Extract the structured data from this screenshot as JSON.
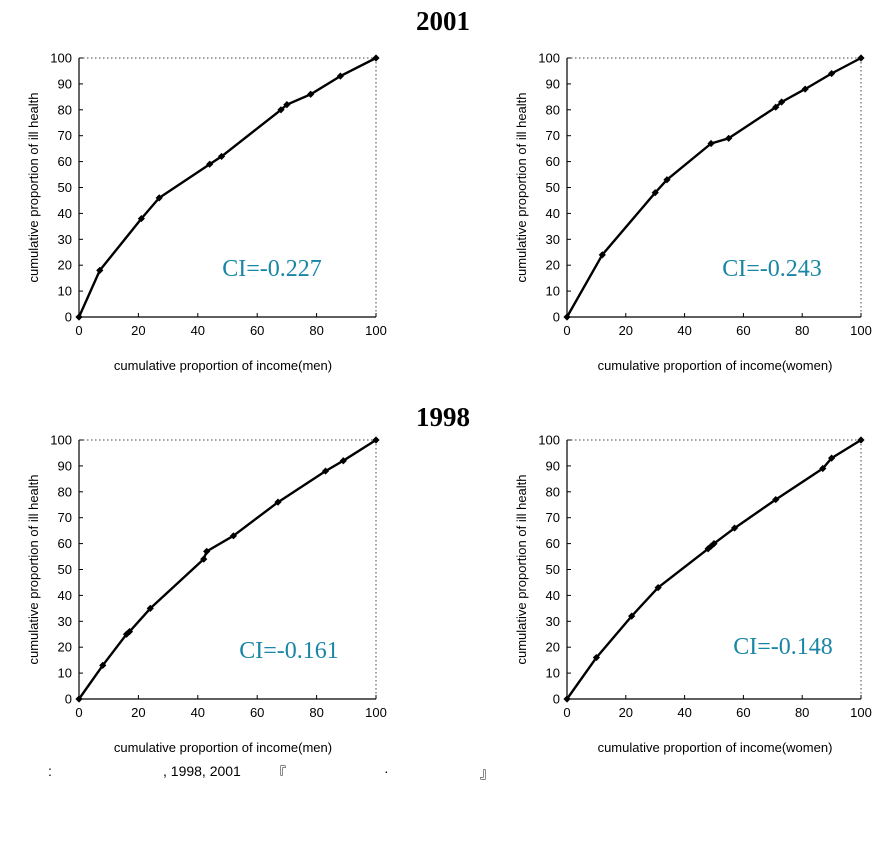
{
  "page": {
    "year_top": "2001",
    "year_bottom": "1998",
    "source": {
      "colon": ":",
      "years": ", 1998, 2001",
      "open_quote": "『",
      "dot": "·",
      "close_quote": "』"
    }
  },
  "chart_data": [
    {
      "type": "line",
      "panel": "2001-men",
      "xlabel": "cumulative proportion of income(men)",
      "ylabel": "cumulative proportion of ill health",
      "xlim": [
        0,
        100
      ],
      "ylim": [
        0,
        100
      ],
      "xticks": [
        0,
        20,
        40,
        60,
        80,
        100
      ],
      "yticks": [
        0,
        10,
        20,
        30,
        40,
        50,
        60,
        70,
        80,
        90,
        100
      ],
      "grid": "dotted border box",
      "annotation": "CI=-0.227",
      "x": [
        0,
        7,
        21,
        27,
        44,
        48,
        68,
        70,
        78,
        88,
        100
      ],
      "y": [
        0,
        18,
        38,
        46,
        59,
        62,
        80,
        82,
        86,
        93,
        100
      ]
    },
    {
      "type": "line",
      "panel": "2001-women",
      "xlabel": "cumulative proportion of income(women)",
      "ylabel": "cumulative proportion of ill health",
      "xlim": [
        0,
        100
      ],
      "ylim": [
        0,
        100
      ],
      "xticks": [
        0,
        20,
        40,
        60,
        80,
        100
      ],
      "yticks": [
        0,
        10,
        20,
        30,
        40,
        50,
        60,
        70,
        80,
        90,
        100
      ],
      "grid": "dotted border box",
      "annotation": "CI=-0.243",
      "x": [
        0,
        12,
        30,
        34,
        49,
        55,
        71,
        73,
        81,
        90,
        100
      ],
      "y": [
        0,
        24,
        48,
        53,
        67,
        69,
        81,
        83,
        88,
        94,
        100
      ]
    },
    {
      "type": "line",
      "panel": "1998-men",
      "xlabel": "cumulative proportion of income(men)",
      "ylabel": "cumulative proportion of ill health",
      "xlim": [
        0,
        100
      ],
      "ylim": [
        0,
        100
      ],
      "xticks": [
        0,
        20,
        40,
        60,
        80,
        100
      ],
      "yticks": [
        0,
        10,
        20,
        30,
        40,
        50,
        60,
        70,
        80,
        90,
        100
      ],
      "grid": "dotted border box",
      "annotation": "CI=-0.161",
      "x": [
        0,
        8,
        16,
        17,
        24,
        42,
        43,
        52,
        67,
        83,
        89,
        100
      ],
      "y": [
        0,
        13,
        25,
        26,
        35,
        54,
        57,
        63,
        76,
        88,
        92,
        100
      ]
    },
    {
      "type": "line",
      "panel": "1998-women",
      "xlabel": "cumulative proportion of income(women)",
      "ylabel": "cumulative proportion of ill health",
      "xlim": [
        0,
        100
      ],
      "ylim": [
        0,
        100
      ],
      "xticks": [
        0,
        20,
        40,
        60,
        80,
        100
      ],
      "yticks": [
        0,
        10,
        20,
        30,
        40,
        50,
        60,
        70,
        80,
        90,
        100
      ],
      "grid": "dotted border box",
      "annotation": "CI=-0.148",
      "x": [
        0,
        10,
        22,
        31,
        48,
        49,
        50,
        57,
        71,
        87,
        90,
        100
      ],
      "y": [
        0,
        16,
        32,
        43,
        58,
        59,
        60,
        66,
        77,
        89,
        93,
        100
      ]
    }
  ]
}
